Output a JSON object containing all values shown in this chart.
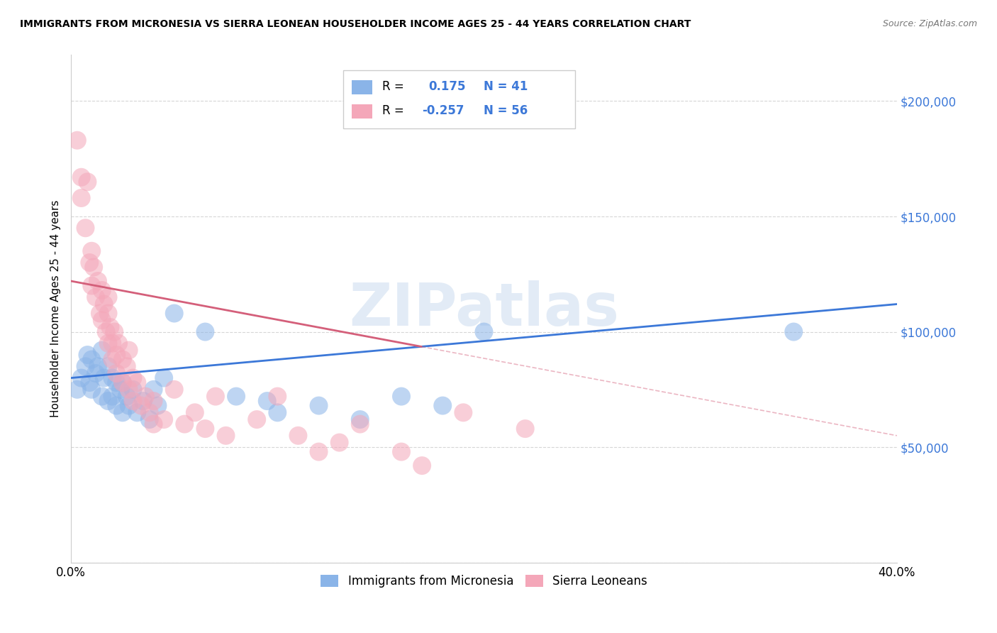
{
  "title": "IMMIGRANTS FROM MICRONESIA VS SIERRA LEONEAN HOUSEHOLDER INCOME AGES 25 - 44 YEARS CORRELATION CHART",
  "source": "Source: ZipAtlas.com",
  "ylabel": "Householder Income Ages 25 - 44 years",
  "watermark": "ZIPatlas",
  "blue_color": "#8ab4e8",
  "pink_color": "#f4a7b9",
  "blue_line_color": "#3c78d8",
  "pink_line_color": "#d45f7a",
  "tick_label_color": "#3c78d8",
  "blue_r": 0.175,
  "blue_n": 41,
  "pink_r": -0.257,
  "pink_n": 56,
  "xlim": [
    0.0,
    0.4
  ],
  "ylim": [
    0,
    220000
  ],
  "yticks": [
    0,
    50000,
    100000,
    150000,
    200000
  ],
  "xticks": [
    0.0,
    0.05,
    0.1,
    0.15,
    0.2,
    0.25,
    0.3,
    0.35,
    0.4
  ],
  "legend_label_blue": "Immigrants from Micronesia",
  "legend_label_pink": "Sierra Leoneans",
  "blue_line_x0": 0.0,
  "blue_line_y0": 80000,
  "blue_line_x1": 0.4,
  "blue_line_y1": 112000,
  "pink_line_x0": 0.0,
  "pink_line_y0": 122000,
  "pink_line_x1": 0.4,
  "pink_line_y1": 55000,
  "blue_points_x": [
    0.003,
    0.005,
    0.007,
    0.008,
    0.009,
    0.01,
    0.01,
    0.012,
    0.013,
    0.015,
    0.015,
    0.016,
    0.018,
    0.018,
    0.02,
    0.02,
    0.022,
    0.022,
    0.024,
    0.025,
    0.025,
    0.027,
    0.028,
    0.03,
    0.032,
    0.035,
    0.038,
    0.04,
    0.042,
    0.045,
    0.05,
    0.065,
    0.08,
    0.095,
    0.1,
    0.12,
    0.14,
    0.16,
    0.18,
    0.2,
    0.35
  ],
  "blue_points_y": [
    75000,
    80000,
    85000,
    90000,
    78000,
    88000,
    75000,
    82000,
    85000,
    92000,
    72000,
    80000,
    85000,
    70000,
    80000,
    72000,
    78000,
    68000,
    75000,
    65000,
    78000,
    72000,
    68000,
    75000,
    65000,
    70000,
    62000,
    75000,
    68000,
    80000,
    108000,
    100000,
    72000,
    70000,
    65000,
    68000,
    62000,
    72000,
    68000,
    100000,
    100000
  ],
  "pink_points_x": [
    0.003,
    0.005,
    0.005,
    0.007,
    0.008,
    0.009,
    0.01,
    0.01,
    0.011,
    0.012,
    0.013,
    0.014,
    0.015,
    0.015,
    0.016,
    0.017,
    0.018,
    0.018,
    0.018,
    0.019,
    0.02,
    0.02,
    0.021,
    0.022,
    0.022,
    0.023,
    0.025,
    0.025,
    0.027,
    0.028,
    0.028,
    0.03,
    0.03,
    0.032,
    0.034,
    0.036,
    0.038,
    0.04,
    0.04,
    0.045,
    0.05,
    0.055,
    0.06,
    0.065,
    0.07,
    0.075,
    0.09,
    0.1,
    0.11,
    0.12,
    0.13,
    0.14,
    0.16,
    0.17,
    0.19,
    0.22
  ],
  "pink_points_y": [
    183000,
    167000,
    158000,
    145000,
    165000,
    130000,
    135000,
    120000,
    128000,
    115000,
    122000,
    108000,
    118000,
    105000,
    112000,
    100000,
    108000,
    95000,
    115000,
    102000,
    95000,
    88000,
    100000,
    90000,
    82000,
    95000,
    88000,
    78000,
    85000,
    92000,
    75000,
    80000,
    70000,
    78000,
    68000,
    72000,
    65000,
    70000,
    60000,
    62000,
    75000,
    60000,
    65000,
    58000,
    72000,
    55000,
    62000,
    72000,
    55000,
    48000,
    52000,
    60000,
    48000,
    42000,
    65000,
    58000
  ]
}
